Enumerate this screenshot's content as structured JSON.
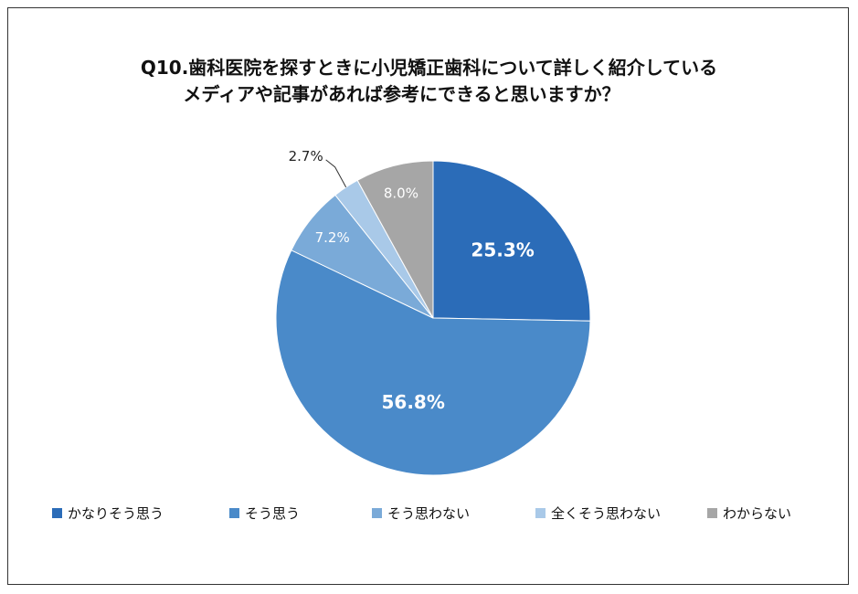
{
  "chart_data": {
    "type": "pie",
    "title_lines": [
      "Q10.歯科医院を探すときに小児矯正歯科について詳しく紹介している",
      "メディアや記事があれば参考にできると思いますか？"
    ],
    "categories": [
      "かなりそう思う",
      "そう思う",
      "そう思わない",
      "全くそう思わない",
      "わからない"
    ],
    "values": [
      25.3,
      56.8,
      7.2,
      2.7,
      8.0
    ],
    "labels": [
      "25.3%",
      "56.8%",
      "7.2%",
      "2.7%",
      "8.0%"
    ],
    "colors": [
      "#2b6cb8",
      "#4a8ac9",
      "#7aaad8",
      "#a9c9e8",
      "#a6a6a6"
    ],
    "label_colors": [
      "#ffffff",
      "#ffffff",
      "#ffffff",
      "#222222",
      "#ffffff"
    ],
    "legend_position": "bottom"
  }
}
